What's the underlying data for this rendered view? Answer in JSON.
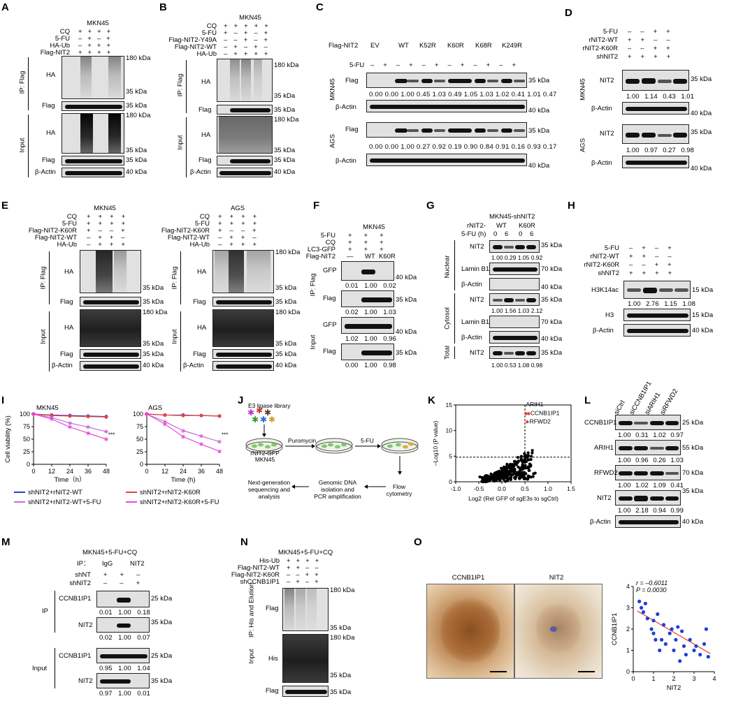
{
  "panels": {
    "A": "A",
    "B": "B",
    "C": "C",
    "D": "D",
    "E": "E",
    "F": "F",
    "G": "G",
    "H": "H",
    "I": "I",
    "J": "J",
    "K": "K",
    "L": "L",
    "M": "M",
    "N": "N",
    "O": "O"
  },
  "kda": {
    "k180": "180 kDa",
    "k35": "35 kDa",
    "k40": "40 kDa",
    "k15": "15 kDa",
    "k70": "70 kDa",
    "k25": "25 kDa",
    "k55": "55 kDa"
  },
  "labels": {
    "mkn45": "MKN45",
    "ags": "AGS",
    "cq": "CQ",
    "fu": "5-FU",
    "haub": "HA-Ub",
    "flagnit2": "Flag-NIT2",
    "ha": "HA",
    "flag": "Flag",
    "bactin": "β-Actin",
    "ipflag": "IP: Flag",
    "input": "Input",
    "y49a": "Flag-NIT2-Y49A",
    "nit2wt": "Flag-NIT2-WT",
    "k60rF": "Flag-NIT2-K60R",
    "rwt": "rNIT2-WT",
    "rk60r": "rNIT2-K60R",
    "shnit2": "shNIT2",
    "nit2": "NIT2",
    "lc3": "LC3-GFP",
    "gfp": "GFP",
    "wt": "WT",
    "k60r": "K60R",
    "dash": "—",
    "lamin": "Lamin B1",
    "nuclear": "Nuclear",
    "cytosol": "Cytosol",
    "total": "Total",
    "h3k14": "H3K14ac",
    "h3": "H3",
    "mknsh": "MKN45-shNIT2",
    "rnit2": "rNIT2-",
    "fuh": "5-FU (h)",
    "ev": "EV",
    "k52r": "K52R",
    "k68r": "K68R",
    "k249r": "K249R",
    "plus": "+",
    "minus": "–",
    "zero": "0",
    "six": "6"
  },
  "C": {
    "lanes": [
      "EV",
      "WT",
      "K52R",
      "K60R",
      "K68R",
      "K249R"
    ],
    "mkn": "0.00 0.00 1.00 0.45 1.03 0.49 1.05 1.03 1.02 0.41 1.01 0.47",
    "ags": "0.00 0.00 1.00 0.27 0.92 0.19 0.90 0.84 0.91 0.16 0.93 0.17"
  },
  "D": {
    "mkn": "1.00  1.14  0.43  1.01",
    "ags": "1.00  0.97  0.27  0.98"
  },
  "F": {
    "gfp": "0.01  1.00  0.02",
    "flag": "0.02  1.00  1.03",
    "igfp": "1.02  1.00  0.96",
    "iflag": "0.00  1.00  0.98"
  },
  "G": {
    "nit2n": "1.00 0.29 1.05 0.92",
    "nit2c": "1.00 1.56 1.03 2.12",
    "tot": "1.00 0.53 1.08 0.98"
  },
  "H": {
    "h3k": "1.00  2.76  1.15  1.08"
  },
  "I": {
    "ylabel": "Cell viability (%)",
    "xlabel": "Time（h）",
    "xlabel2": "Time (h)",
    "stars": "***",
    "legend": [
      "shNIT2+rNIT2-WT",
      "shNIT2+rNIT2-K60R",
      "shNIT2+rNIT2-WT+5-FU",
      "shNIT2+rNIT2-K60R+5-FU"
    ],
    "colors": [
      "#2a3bd6",
      "#e8413b",
      "#c86ad8",
      "#e84ad8"
    ]
  },
  "chart_data": [
    {
      "type": "line",
      "title": "MKN45",
      "xlabel": "Time（h）",
      "ylabel": "Cell viability (%)",
      "x": [
        0,
        12,
        24,
        36,
        48
      ],
      "ylim": [
        0,
        100
      ],
      "xlim": [
        0,
        48
      ],
      "series": [
        {
          "name": "shNIT2+rNIT2-WT",
          "values": [
            100,
            98,
            97,
            96,
            95
          ]
        },
        {
          "name": "shNIT2+rNIT2-K60R",
          "values": [
            100,
            97,
            96,
            95,
            94
          ]
        },
        {
          "name": "shNIT2+rNIT2-WT+5-FU",
          "values": [
            100,
            93,
            82,
            74,
            65
          ]
        },
        {
          "name": "shNIT2+rNIT2-K60R+5-FU",
          "values": [
            100,
            90,
            74,
            62,
            50
          ]
        }
      ]
    },
    {
      "type": "line",
      "title": "AGS",
      "xlabel": "Time (h)",
      "ylabel": "",
      "x": [
        0,
        12,
        24,
        36,
        48
      ],
      "ylim": [
        0,
        100
      ],
      "xlim": [
        0,
        48
      ],
      "series": [
        {
          "name": "shNIT2+rNIT2-WT",
          "values": [
            100,
            98,
            98,
            97,
            96
          ]
        },
        {
          "name": "shNIT2+rNIT2-K60R",
          "values": [
            100,
            98,
            97,
            97,
            96
          ]
        },
        {
          "name": "shNIT2+rNIT2-WT+5-FU",
          "values": [
            100,
            85,
            67,
            56,
            45
          ]
        },
        {
          "name": "shNIT2+rNIT2-K60R+5-FU",
          "values": [
            100,
            80,
            55,
            40,
            26
          ]
        }
      ]
    },
    {
      "type": "scatter",
      "title": "",
      "xlabel": "Log2 (Rel GFP of sgE3s to sgCtrl)",
      "ylabel": "-Log10 (P value)",
      "xlim": [
        -1.0,
        1.5
      ],
      "ylim": [
        0,
        15
      ],
      "annotations": [
        "ARIH1",
        "CCNB1IP1",
        "RFWD2"
      ]
    },
    {
      "type": "scatter",
      "title": "",
      "xlabel": "NIT2",
      "ylabel": "CCNB1IP1",
      "xlim": [
        0,
        4
      ],
      "ylim": [
        0,
        4
      ],
      "annotations": [
        "r = -0.6011",
        "P = 0.0030"
      ],
      "x": [
        0.3,
        0.4,
        0.5,
        0.6,
        0.7,
        0.9,
        1.0,
        1.1,
        1.2,
        1.3,
        1.4,
        1.5,
        1.6,
        1.8,
        1.9,
        2.0,
        2.1,
        2.2,
        2.3,
        2.5,
        2.6,
        2.8,
        3.0,
        3.1,
        3.3,
        3.5,
        3.6,
        3.7,
        1.0,
        2.4
      ],
      "y": [
        3.3,
        3.0,
        2.8,
        3.2,
        2.5,
        2.0,
        1.8,
        1.5,
        2.7,
        1.0,
        1.5,
        2.2,
        1.3,
        1.8,
        2.0,
        1.0,
        1.5,
        2.1,
        0.5,
        1.2,
        0.8,
        1.5,
        1.0,
        1.2,
        0.8,
        1.3,
        2.0,
        0.7,
        2.4,
        1.9
      ]
    }
  ],
  "J": {
    "lib": "E3 ligase library",
    "cell": "rNIT2-GFP",
    "cell2": "MKN45",
    "puro": "Puromycin",
    "fu": "5-FU",
    "ngs1": "Next-generation",
    "ngs2": "sequencing and",
    "ngs3": "analysis",
    "gdna1": "Genomic DNA",
    "gdna2": "isolation and",
    "gdna3": "PCR amplification",
    "flow1": "Flow",
    "flow2": "cytometry"
  },
  "K": {
    "ylabel": "–Log10 (P value)",
    "xlabel": "Log2 (Rel GFP of sgE3s to sgCtrl)",
    "arih": "ARIH1",
    "ccnb": "CCNB1IP1",
    "rfwd": "RFWD2",
    "xt": [
      "-1.0",
      "-0.5",
      "0.0",
      "0.5",
      "1.0",
      "1.5"
    ],
    "yt": [
      "0",
      "5",
      "10",
      "15"
    ]
  },
  "L": {
    "cols": [
      "siCtrl",
      "siCCNB1IP1",
      "siARIH1",
      "siRFWD2"
    ],
    "rows": [
      "CCNB1IP1",
      "ARIH1",
      "RFWD2",
      "NIT2",
      "β-Actin"
    ],
    "v1": "1.00  0.31  1.02  0.97",
    "v2": "1.00  0.96  0.26  1.03",
    "v3": "1.00  1.02  1.09  0.41",
    "v4": "1.00  2.18  0.94  0.99"
  },
  "M": {
    "title": "MKN45+5-FU+CQ",
    "ip": "IP：",
    "igg": "IgG",
    "nit2": "NIT2",
    "shnt": "shNT",
    "shnit2": "shNIT2",
    "ccnb": "CCNB1IP1",
    "ipl": "IP",
    "v1": "0.01  1.00  0.18",
    "v2": "0.02  1.00  0.07",
    "v3": "0.95  1.00  1.04",
    "v4": "0.97  1.00  0.01"
  },
  "N": {
    "title": "MKN45+5-FU+CQ",
    "hisub": "His-Ub",
    "wt": "Flag-NIT2-WT",
    "k60r": "Flag-NIT2-K60R",
    "sh": "shCCNB1IP1",
    "ip": "IP: His and Elution",
    "his": "His"
  },
  "O": {
    "ccnb": "CCNB1IP1",
    "nit2": "NIT2",
    "r": "r = –0.6011",
    "p": "P = 0.0030",
    "ylabel": "CCNB1IP1",
    "xlabel": "NIT2"
  }
}
